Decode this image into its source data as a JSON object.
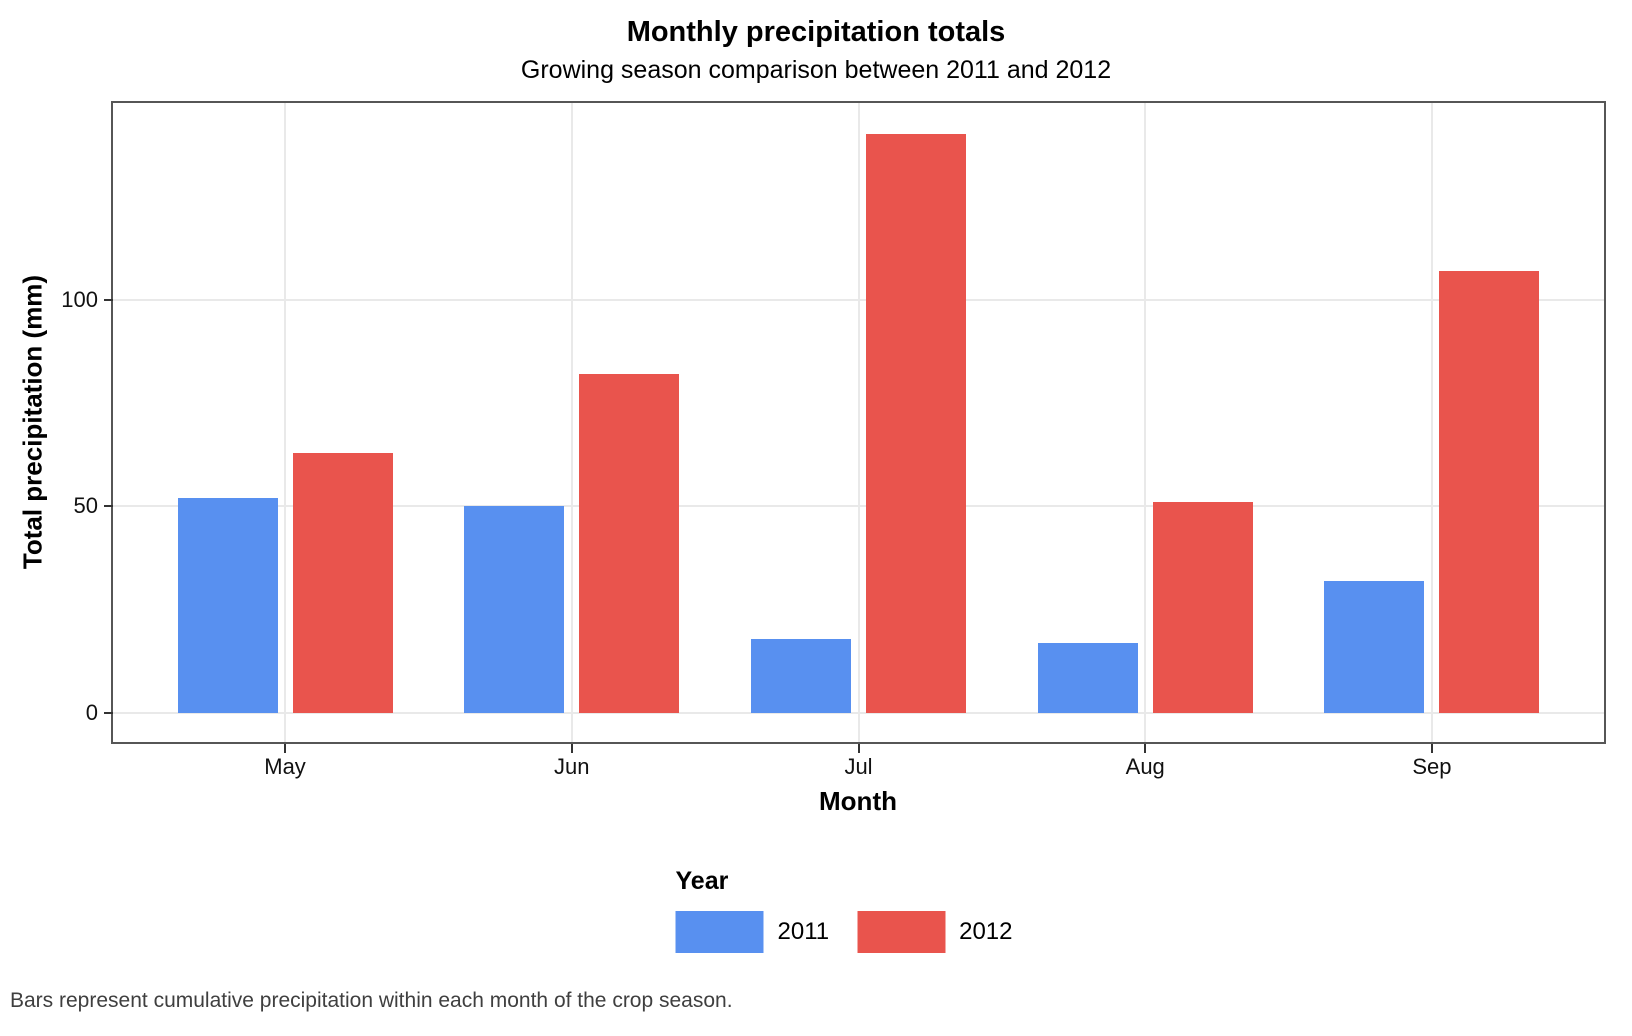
{
  "chart_data": {
    "type": "bar",
    "title": "Monthly precipitation totals",
    "subtitle": "Growing season comparison between 2011 and 2012",
    "xlabel": "Month",
    "ylabel": "Total precipitation (mm)",
    "caption": "Bars represent cumulative precipitation within each month of the crop season.",
    "categories": [
      "May",
      "Jun",
      "Jul",
      "Aug",
      "Sep"
    ],
    "series": [
      {
        "name": "2011",
        "color": "#5890F0",
        "values": [
          52,
          50,
          18,
          17,
          32
        ]
      },
      {
        "name": "2012",
        "color": "#E9544D",
        "values": [
          63,
          82,
          140,
          51,
          107
        ]
      }
    ],
    "yticks": [
      0,
      50,
      100
    ],
    "ylim": [
      0,
      140
    ],
    "legend_title": "Year",
    "legend_position": "bottom",
    "grid": true,
    "colors": {
      "bar_2011": "#5890F0",
      "bar_2012": "#E9544D",
      "panel_border": "#565656",
      "gridline": "#e9e9e9",
      "caption_text": "#3f3f3f"
    }
  }
}
